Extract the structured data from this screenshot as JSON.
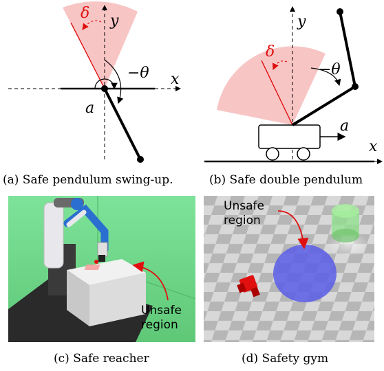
{
  "panels": {
    "a": {
      "caption": "(a) Safe pendulum swing-up.",
      "labels": {
        "delta": "δ",
        "y": "y",
        "x": "x",
        "theta": "−θ",
        "a": "a"
      }
    },
    "b": {
      "caption": "(b) Safe double pendulum",
      "labels": {
        "delta": "δ",
        "y": "y",
        "x": "x",
        "theta": "−θ",
        "a": "a"
      }
    },
    "c": {
      "caption": "(c) Safe reacher",
      "annotation_line1": "Unsafe",
      "annotation_line2": "region"
    },
    "d": {
      "caption": "(d) Safety gym",
      "annotation_line1": "Unsafe",
      "annotation_line2": "region"
    }
  },
  "colors": {
    "unsafe_pink": "#f8c5c5",
    "red": "#e01010",
    "reacher_bg": "#6fd487",
    "gym_floor_light": "#d6d6d6",
    "gym_floor_dark": "#b3b3b3",
    "hazard_blue": "#5a5ee6",
    "goal_green": "#7ee07a"
  }
}
